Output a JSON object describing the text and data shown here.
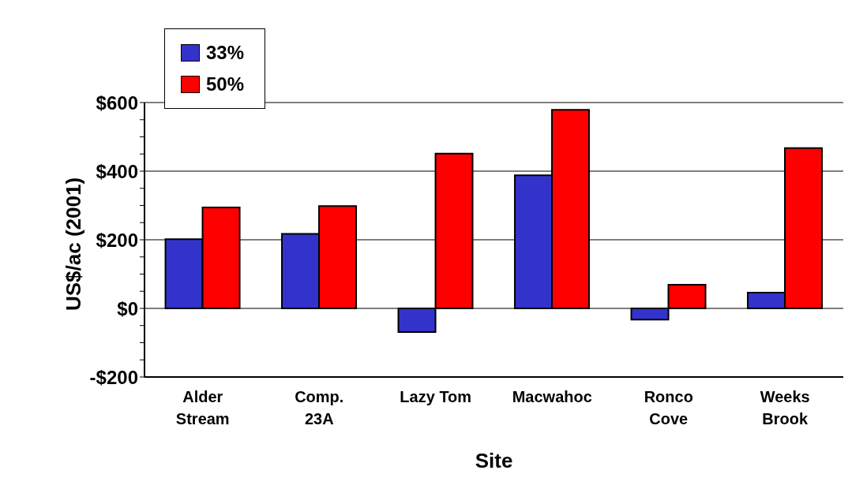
{
  "chart_data": {
    "type": "bar",
    "xlabel": "Site",
    "ylabel": "US$/ac (2001)",
    "categories": [
      "Alder\nStream",
      "Comp.\n23A",
      "Lazy Tom",
      "Macwahoc",
      "Ronco\nCove",
      "Weeks\nBrook"
    ],
    "series": [
      {
        "name": "33%",
        "color": "#3333cc",
        "values": [
          202,
          217,
          -69,
          388,
          -33,
          46
        ]
      },
      {
        "name": "50%",
        "color": "#ff0000",
        "values": [
          294,
          298,
          451,
          579,
          69,
          467
        ]
      }
    ],
    "ylim": [
      -200,
      600
    ],
    "yticks": [
      {
        "value": -200,
        "label": "-$200"
      },
      {
        "value": -150,
        "label": null
      },
      {
        "value": -100,
        "label": null
      },
      {
        "value": -50,
        "label": null
      },
      {
        "value": 0,
        "label": "$0"
      },
      {
        "value": 50,
        "label": null
      },
      {
        "value": 100,
        "label": null
      },
      {
        "value": 150,
        "label": null
      },
      {
        "value": 200,
        "label": "$200"
      },
      {
        "value": 250,
        "label": null
      },
      {
        "value": 300,
        "label": null
      },
      {
        "value": 350,
        "label": null
      },
      {
        "value": 400,
        "label": "$400"
      },
      {
        "value": 450,
        "label": null
      },
      {
        "value": 500,
        "label": null
      },
      {
        "value": 550,
        "label": null
      },
      {
        "value": 600,
        "label": "$600"
      }
    ],
    "grid": "y",
    "legend": "top left"
  }
}
